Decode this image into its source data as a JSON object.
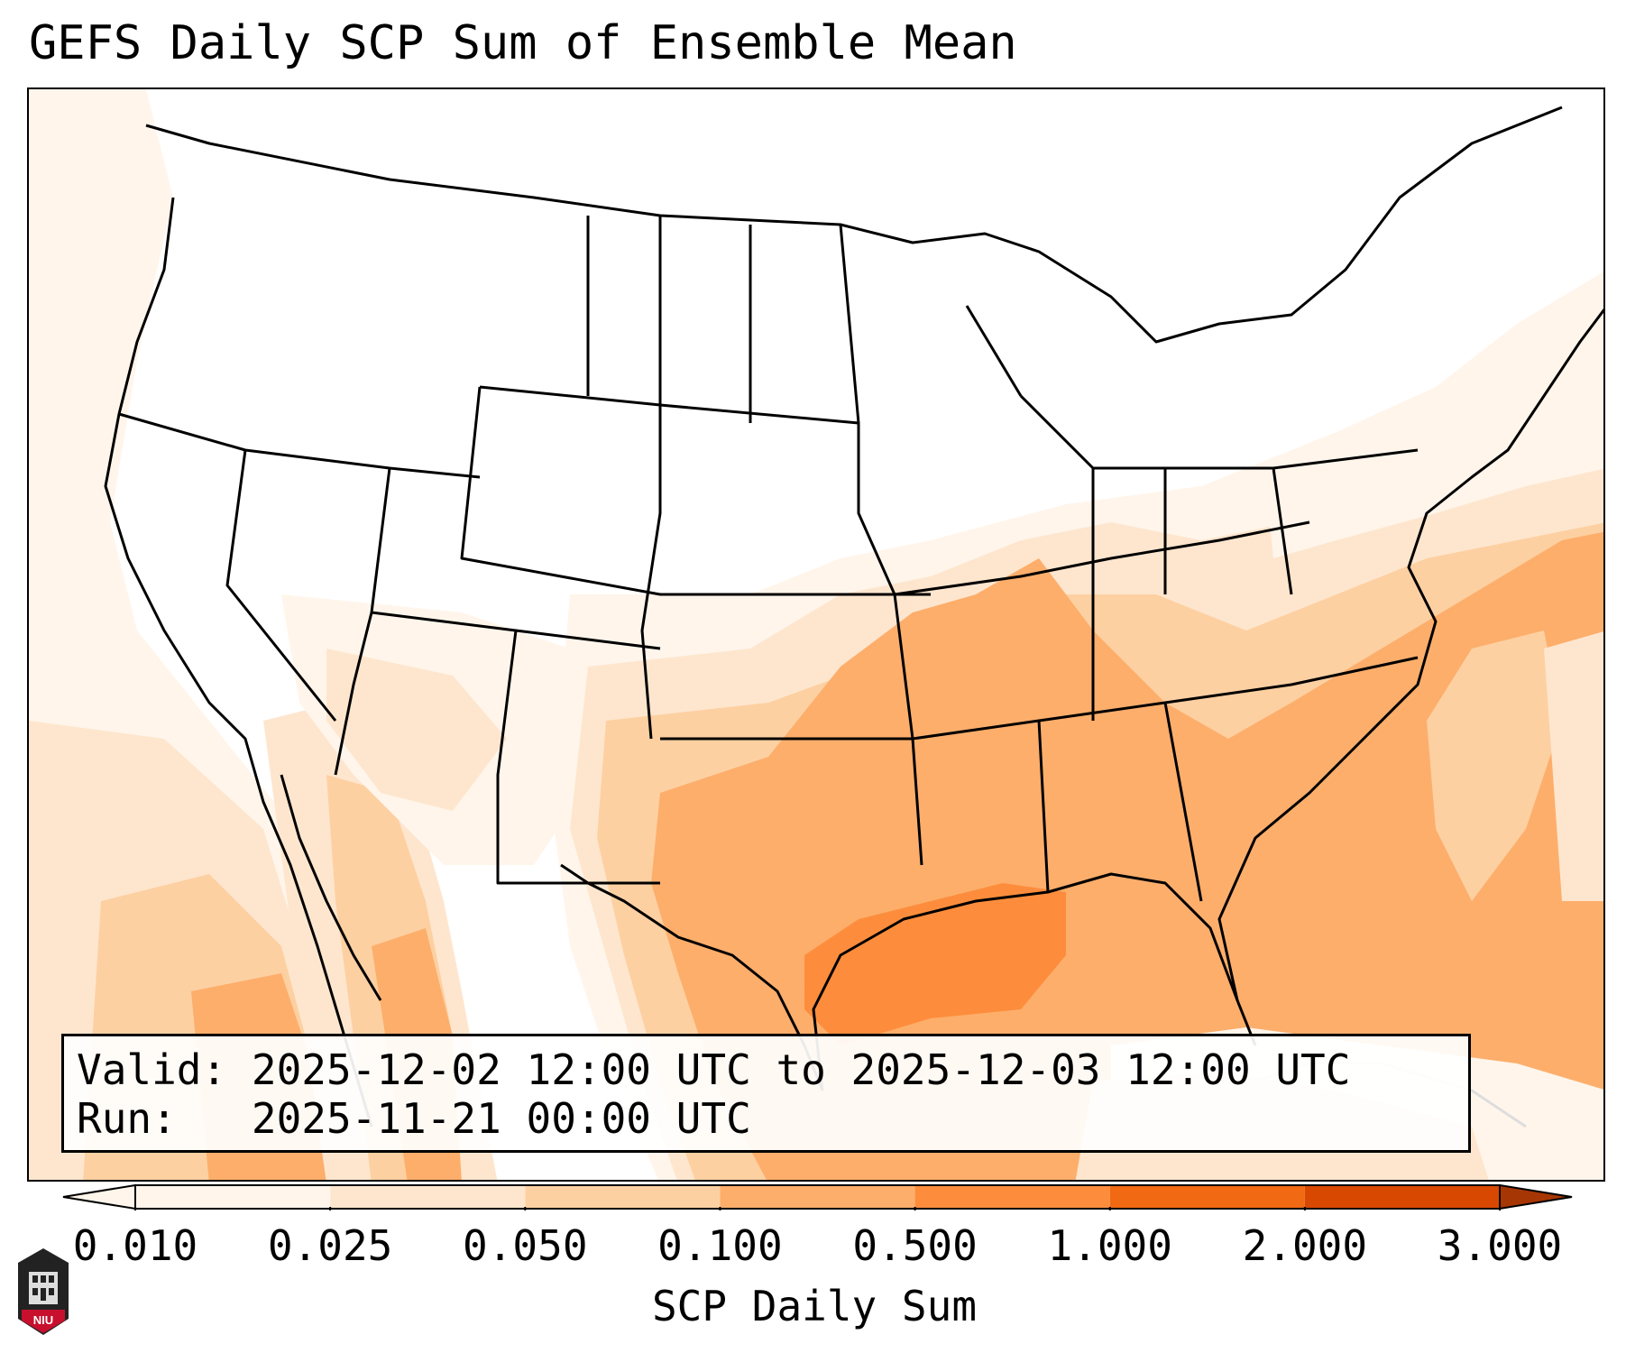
{
  "title": "GEFS Daily SCP Sum of Ensemble Mean",
  "info": {
    "valid_label": "Valid:",
    "valid_value": "2025-12-02 12:00 UTC to 2025-12-03 12:00 UTC",
    "run_label": "Run:",
    "run_value": "2025-11-21 00:00 UTC"
  },
  "colorbar": {
    "label": "SCP Daily Sum",
    "ticks": [
      "0.010",
      "0.025",
      "0.050",
      "0.100",
      "0.500",
      "1.000",
      "2.000",
      "3.000"
    ],
    "colors": [
      "#fff5eb",
      "#fee6ce",
      "#fdd0a2",
      "#fdae6b",
      "#fd8d3c",
      "#f16913",
      "#d94801",
      "#a63603"
    ],
    "extend": "both"
  },
  "logo": {
    "text": "NIU",
    "color": "#c8102e"
  },
  "map": {
    "region": "Continental United States",
    "field": "SCP daily sum",
    "max_region": "Gulf of Mexico / Southern Plains / Southeast"
  }
}
